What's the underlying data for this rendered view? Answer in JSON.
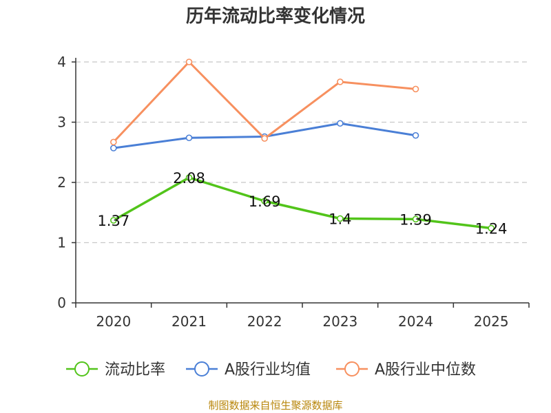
{
  "chart_data": {
    "type": "line",
    "title": "历年流动比率变化情况",
    "categories": [
      "2020",
      "2021",
      "2022",
      "2023",
      "2024",
      "2025"
    ],
    "ylim": [
      0,
      4
    ],
    "yticks": [
      0,
      1,
      2,
      3,
      4
    ],
    "grid": true,
    "legend_position": "bottom",
    "series": [
      {
        "name": "流动比率",
        "color": "#52c41a",
        "values": [
          1.37,
          2.08,
          1.69,
          1.4,
          1.39,
          1.24
        ],
        "labels": [
          "1.37",
          "2.08",
          "1.69",
          "1.4",
          "1.39",
          "1.24"
        ]
      },
      {
        "name": "A股行业均值",
        "color": "#4a7fd6",
        "values": [
          2.57,
          2.74,
          2.76,
          2.98,
          2.78,
          null
        ]
      },
      {
        "name": "A股行业中位数",
        "color": "#f7905f",
        "values": [
          2.67,
          4.0,
          2.73,
          3.67,
          3.55,
          null
        ]
      }
    ],
    "source": "制图数据来自恒生聚源数据库"
  }
}
